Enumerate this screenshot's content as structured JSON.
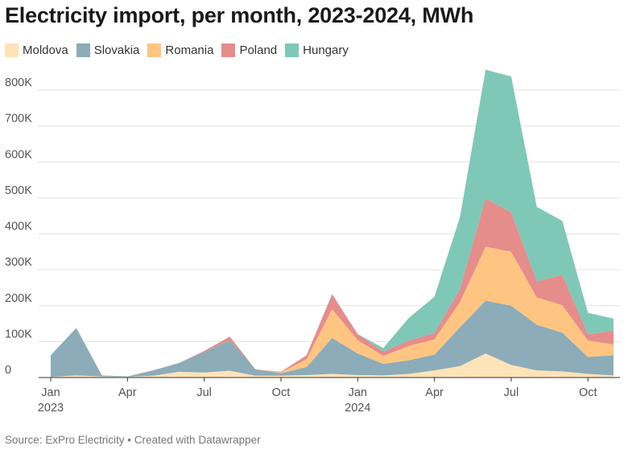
{
  "chart_data": {
    "type": "area",
    "stacked": true,
    "title": "Electricity import, per month, 2023-2024, MWh",
    "months": [
      "2023-01",
      "2023-02",
      "2023-03",
      "2023-04",
      "2023-05",
      "2023-06",
      "2023-07",
      "2023-08",
      "2023-09",
      "2023-10",
      "2023-11",
      "2023-12",
      "2024-01",
      "2024-02",
      "2024-03",
      "2024-04",
      "2024-05",
      "2024-06",
      "2024-07",
      "2024-08",
      "2024-09",
      "2024-10",
      "2024-11"
    ],
    "x_tick_labels": [
      {
        "index": 0,
        "label": "Jan",
        "year": "2023"
      },
      {
        "index": 3,
        "label": "Apr"
      },
      {
        "index": 6,
        "label": "Jul"
      },
      {
        "index": 9,
        "label": "Oct"
      },
      {
        "index": 12,
        "label": "Jan",
        "year": "2024"
      },
      {
        "index": 15,
        "label": "Apr"
      },
      {
        "index": 18,
        "label": "Jul"
      },
      {
        "index": 21,
        "label": "Oct"
      }
    ],
    "y_ticks": [
      {
        "value": 0,
        "label": "0"
      },
      {
        "value": 100000,
        "label": "100K"
      },
      {
        "value": 200000,
        "label": "200K"
      },
      {
        "value": 300000,
        "label": "300K"
      },
      {
        "value": 400000,
        "label": "400K"
      },
      {
        "value": 500000,
        "label": "500K"
      },
      {
        "value": 600000,
        "label": "600K"
      },
      {
        "value": 700000,
        "label": "700K"
      },
      {
        "value": 800000,
        "label": "800K"
      }
    ],
    "ylim": [
      0,
      860000
    ],
    "legend_position": "top-left",
    "series": [
      {
        "name": "Moldova",
        "color": "#fde3b7",
        "values": [
          2000,
          6000,
          3000,
          2000,
          5000,
          16000,
          14000,
          19000,
          5000,
          5000,
          7000,
          10000,
          7000,
          6000,
          10000,
          20000,
          32000,
          67000,
          35000,
          20000,
          17000,
          10000,
          6000
        ]
      },
      {
        "name": "Slovakia",
        "color": "#8bacb8",
        "values": [
          60000,
          132000,
          3000,
          1000,
          15000,
          24000,
          57000,
          85000,
          18000,
          7000,
          22000,
          100000,
          60000,
          32000,
          38000,
          44000,
          108000,
          147000,
          165000,
          127000,
          108000,
          47000,
          56000
        ]
      },
      {
        "name": "Romania",
        "color": "#fdc581",
        "values": [
          0,
          0,
          0,
          0,
          0,
          0,
          0,
          0,
          0,
          2000,
          22000,
          80000,
          37000,
          22000,
          40000,
          42000,
          70000,
          150000,
          150000,
          76000,
          76000,
          46000,
          30000
        ]
      },
      {
        "name": "Poland",
        "color": "#e58d8a",
        "values": [
          0,
          0,
          0,
          0,
          0,
          0,
          3000,
          10000,
          0,
          2000,
          11000,
          42000,
          17000,
          12000,
          15000,
          18000,
          37000,
          135000,
          110000,
          45000,
          85000,
          17000,
          39000
        ]
      },
      {
        "name": "Hungary",
        "color": "#7fc7b6",
        "values": [
          0,
          0,
          0,
          0,
          0,
          0,
          0,
          0,
          0,
          0,
          0,
          0,
          0,
          10000,
          63000,
          101000,
          200000,
          358000,
          378000,
          207000,
          150000,
          60000,
          33000
        ]
      }
    ]
  },
  "footer": {
    "source": "Source: ExPro Electricity",
    "separator": " • ",
    "credit": "Created with Datawrapper"
  }
}
